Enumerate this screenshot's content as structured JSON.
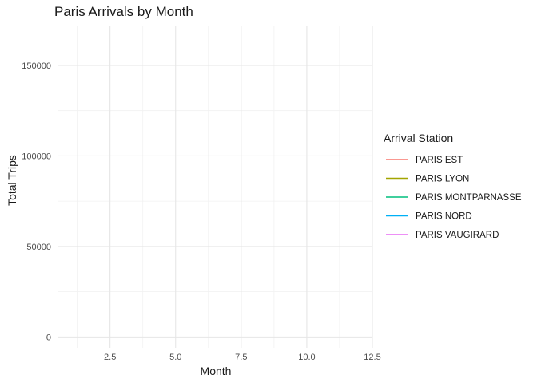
{
  "chart_data": {
    "type": "line",
    "title": "Paris Arrivals by Month",
    "xlabel": "Month",
    "ylabel": "Total Trips",
    "xlim": [
      0.5,
      12.5
    ],
    "ylim": [
      -6000,
      172000
    ],
    "x_ticks": [
      {
        "value": 2.5,
        "label": "2.5"
      },
      {
        "value": 5.0,
        "label": "5.0"
      },
      {
        "value": 7.5,
        "label": "7.5"
      },
      {
        "value": 10.0,
        "label": "10.0"
      },
      {
        "value": 12.5,
        "label": "12.5"
      }
    ],
    "y_ticks": [
      {
        "value": 0,
        "label": "0"
      },
      {
        "value": 50000,
        "label": "50000"
      },
      {
        "value": 100000,
        "label": "100000"
      },
      {
        "value": 150000,
        "label": "150000"
      }
    ],
    "grid": true,
    "legend": {
      "title": "Arrival Station",
      "placement": "right"
    },
    "series": [
      {
        "name": "PARIS EST",
        "color": "#F8766D",
        "x": [],
        "values": []
      },
      {
        "name": "PARIS LYON",
        "color": "#A3A500",
        "x": [],
        "values": []
      },
      {
        "name": "PARIS MONTPARNASSE",
        "color": "#00BF7D",
        "x": [],
        "values": []
      },
      {
        "name": "PARIS NORD",
        "color": "#00B0F6",
        "x": [],
        "values": []
      },
      {
        "name": "PARIS VAUGIRARD",
        "color": "#E76BF3",
        "x": [],
        "values": []
      }
    ]
  }
}
